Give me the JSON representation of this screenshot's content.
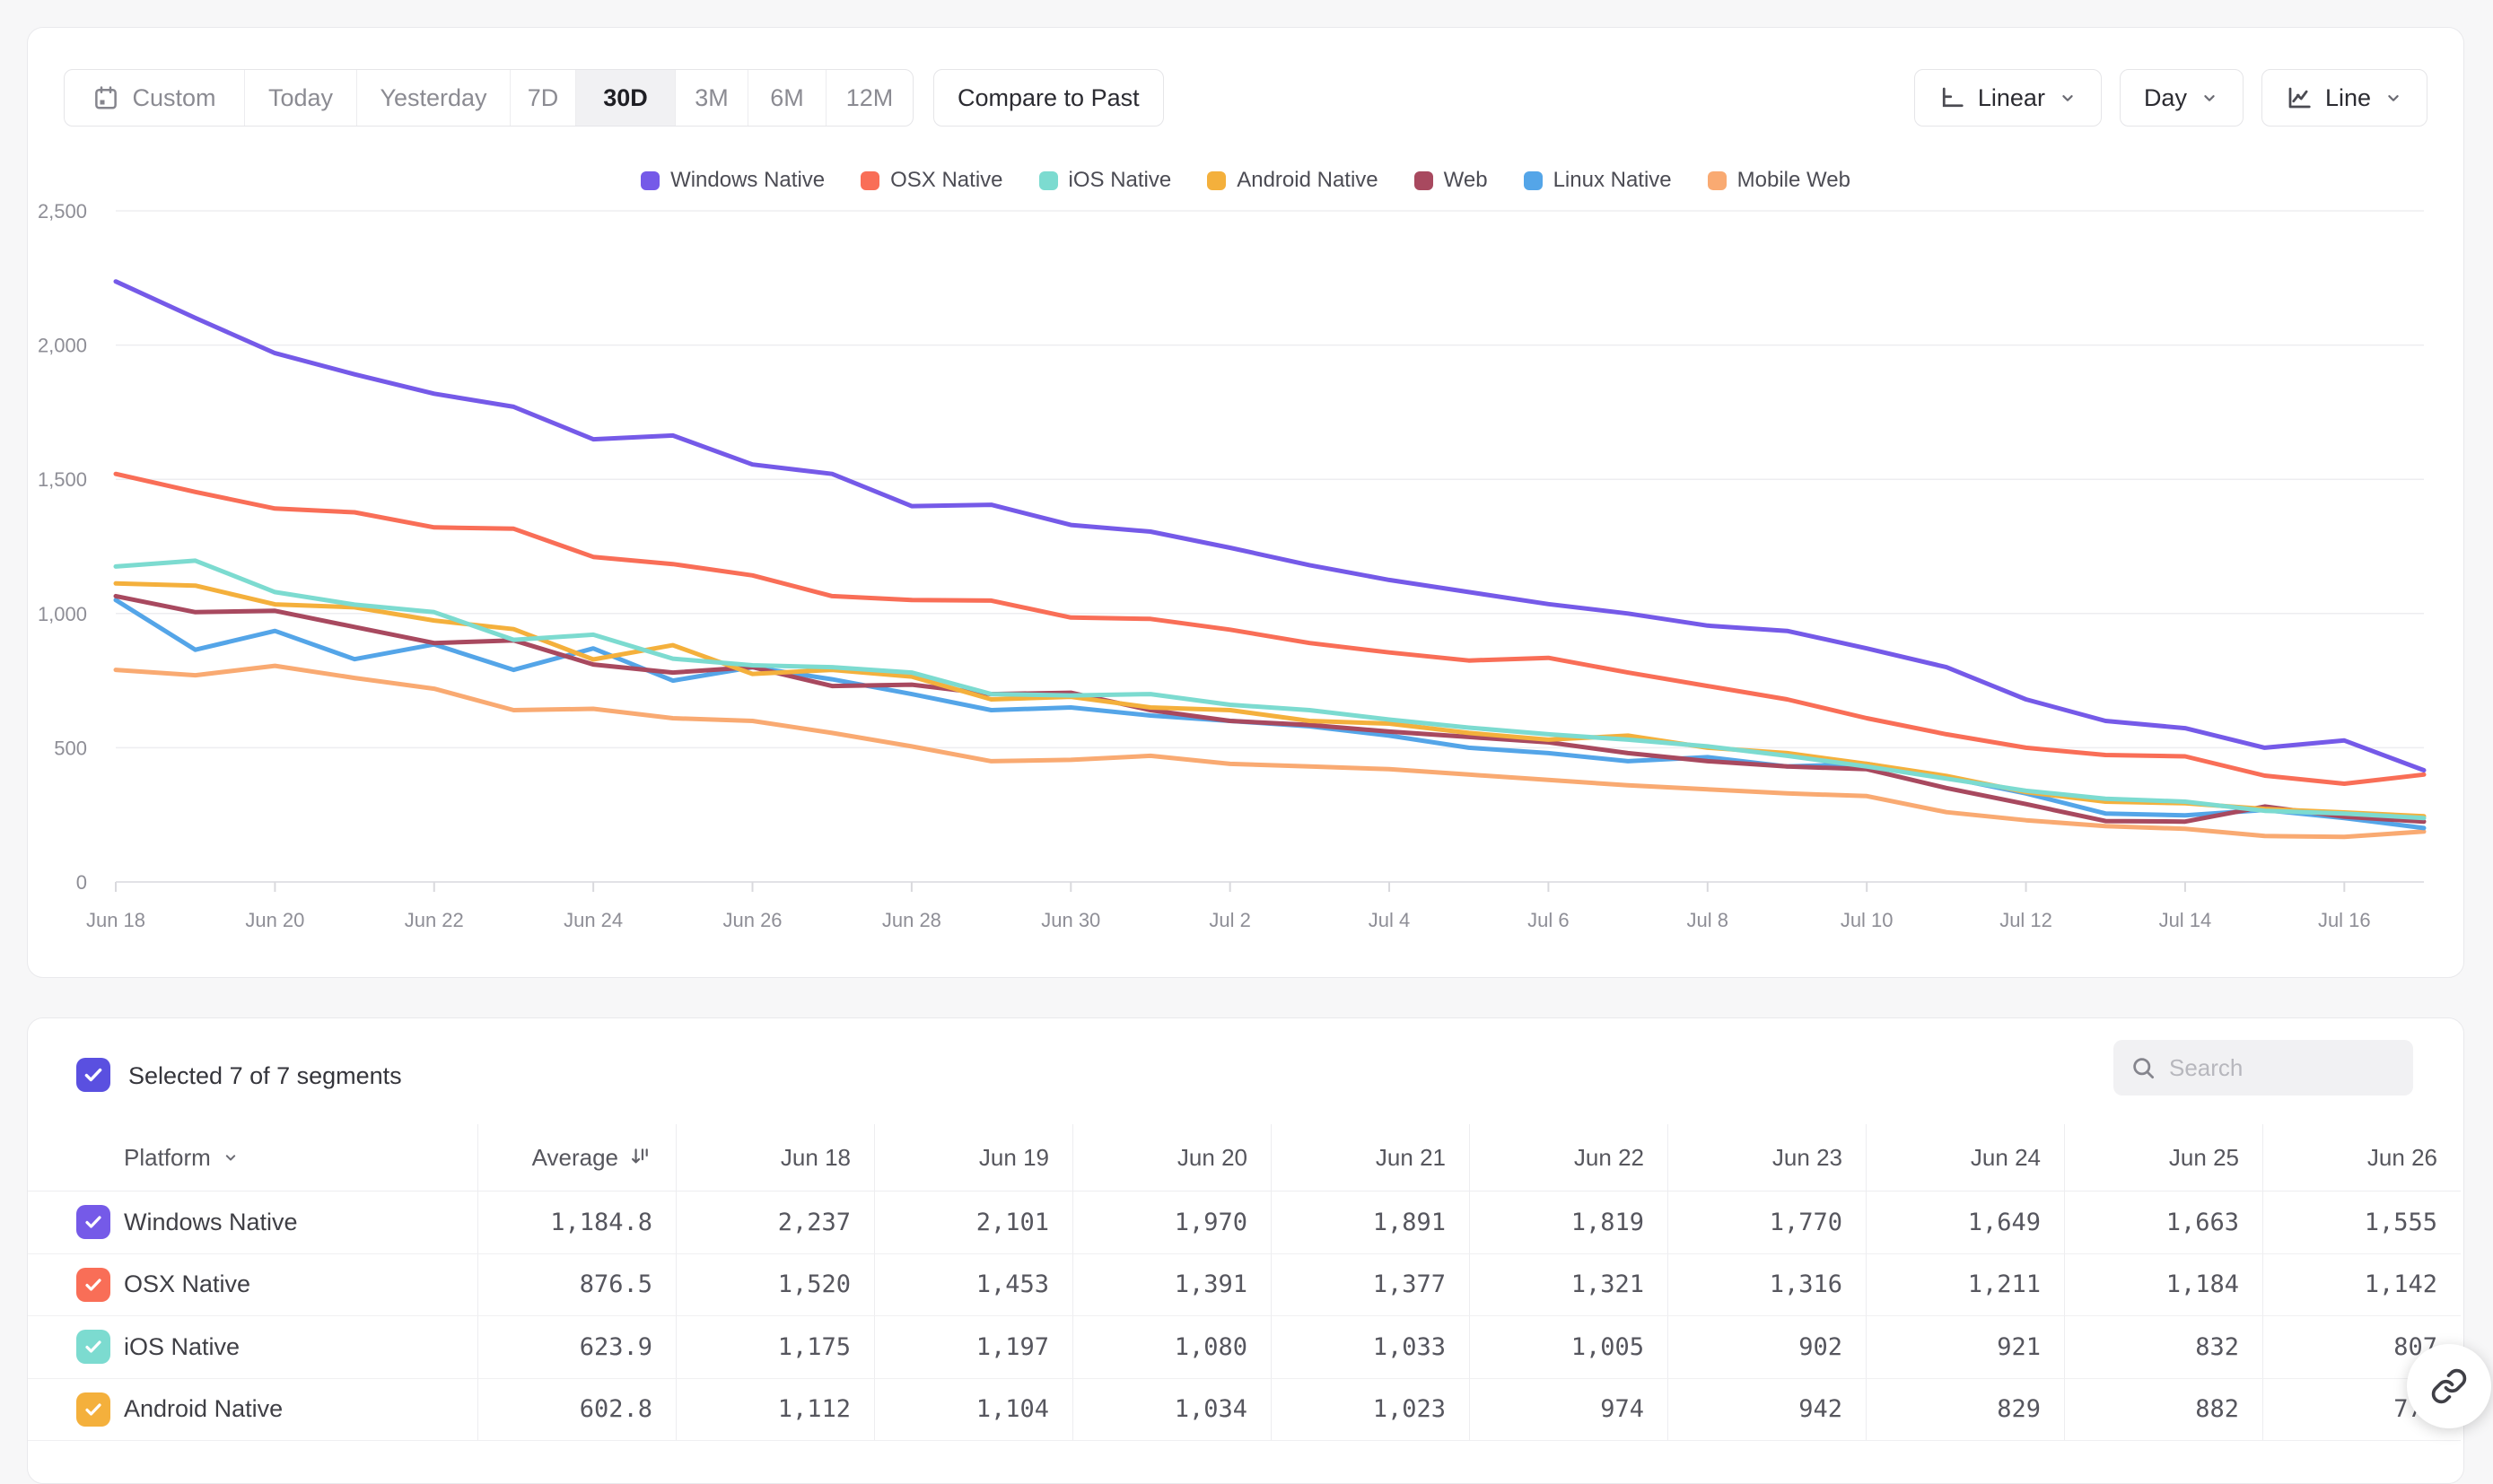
{
  "toolbar": {
    "date_ranges": [
      {
        "label": "Custom",
        "icon": "calendar",
        "active": false
      },
      {
        "label": "Today",
        "active": false
      },
      {
        "label": "Yesterday",
        "active": false
      },
      {
        "label": "7D",
        "active": false
      },
      {
        "label": "30D",
        "active": true
      },
      {
        "label": "3M",
        "active": false
      },
      {
        "label": "6M",
        "active": false
      },
      {
        "label": "12M",
        "active": false
      }
    ],
    "compare_label": "Compare to Past",
    "scale_label": "Linear",
    "granularity_label": "Day",
    "chart_type_label": "Line"
  },
  "chart_data": {
    "type": "line",
    "title": "",
    "xlabel": "",
    "ylabel": "",
    "grid": true,
    "legend_position": "top",
    "ylim": [
      0,
      2500
    ],
    "yticks": [
      0,
      500,
      1000,
      1500,
      2000,
      2500
    ],
    "ytick_labels": [
      "0",
      "500",
      "1,000",
      "1,500",
      "2,000",
      "2,500"
    ],
    "x": [
      "Jun 18",
      "Jun 19",
      "Jun 20",
      "Jun 21",
      "Jun 22",
      "Jun 23",
      "Jun 24",
      "Jun 25",
      "Jun 26",
      "Jun 27",
      "Jun 28",
      "Jun 29",
      "Jun 30",
      "Jul 1",
      "Jul 2",
      "Jul 3",
      "Jul 4",
      "Jul 5",
      "Jul 6",
      "Jul 7",
      "Jul 8",
      "Jul 9",
      "Jul 10",
      "Jul 11",
      "Jul 12",
      "Jul 13",
      "Jul 14",
      "Jul 15",
      "Jul 16",
      "Jul 17"
    ],
    "x_tick_labels": [
      "Jun 18",
      "Jun 20",
      "Jun 22",
      "Jun 24",
      "Jun 26",
      "Jun 28",
      "Jun 30",
      "Jul 2",
      "Jul 4",
      "Jul 6",
      "Jul 8",
      "Jul 10",
      "Jul 12",
      "Jul 14",
      "Jul 16"
    ],
    "series": [
      {
        "name": "Windows Native",
        "color": "#755ae8",
        "values": [
          2237,
          2101,
          1970,
          1891,
          1819,
          1770,
          1649,
          1663,
          1555,
          1520,
          1400,
          1405,
          1330,
          1305,
          1245,
          1180,
          1125,
          1080,
          1035,
          1000,
          955,
          935,
          870,
          800,
          680,
          600,
          573,
          500,
          527,
          416
        ]
      },
      {
        "name": "OSX Native",
        "color": "#f96e57",
        "values": [
          1520,
          1453,
          1391,
          1377,
          1321,
          1316,
          1211,
          1184,
          1142,
          1065,
          1050,
          1048,
          985,
          980,
          940,
          890,
          855,
          825,
          835,
          780,
          730,
          680,
          610,
          550,
          500,
          473,
          468,
          396,
          366,
          400
        ]
      },
      {
        "name": "iOS Native",
        "color": "#7cdbd0",
        "values": [
          1175,
          1197,
          1080,
          1033,
          1005,
          902,
          921,
          832,
          807,
          800,
          780,
          700,
          695,
          700,
          660,
          640,
          605,
          575,
          550,
          530,
          505,
          470,
          430,
          385,
          340,
          310,
          299,
          265,
          255,
          238
        ]
      },
      {
        "name": "Android Native",
        "color": "#f4b03c",
        "values": [
          1112,
          1104,
          1034,
          1023,
          974,
          942,
          829,
          882,
          775,
          790,
          765,
          680,
          690,
          650,
          640,
          600,
          590,
          555,
          530,
          545,
          500,
          480,
          440,
          395,
          335,
          299,
          293,
          272,
          259,
          245
        ]
      },
      {
        "name": "Web",
        "color": "#a8495f",
        "values": [
          1065,
          1005,
          1010,
          950,
          890,
          900,
          810,
          780,
          800,
          730,
          735,
          700,
          705,
          640,
          600,
          585,
          560,
          540,
          520,
          480,
          450,
          430,
          420,
          350,
          290,
          227,
          225,
          281,
          243,
          225
        ]
      },
      {
        "name": "Linux Native",
        "color": "#54a5e8",
        "values": [
          1050,
          865,
          935,
          830,
          885,
          790,
          870,
          750,
          800,
          755,
          700,
          640,
          650,
          620,
          600,
          580,
          545,
          500,
          480,
          450,
          465,
          430,
          440,
          390,
          330,
          255,
          248,
          268,
          238,
          201
        ]
      },
      {
        "name": "Mobile Web",
        "color": "#f9aa72",
        "values": [
          790,
          770,
          805,
          760,
          720,
          640,
          645,
          610,
          600,
          555,
          505,
          450,
          455,
          470,
          440,
          430,
          420,
          400,
          380,
          360,
          345,
          330,
          320,
          260,
          230,
          208,
          198,
          171,
          168,
          188
        ]
      }
    ]
  },
  "segments_panel": {
    "selected_label": "Selected 7 of 7 segments",
    "selected_checkbox_color": "#5a50e0",
    "search_placeholder": "Search",
    "table": {
      "platform_header": "Platform",
      "average_header": "Average",
      "date_columns": [
        "Jun 18",
        "Jun 19",
        "Jun 20",
        "Jun 21",
        "Jun 22",
        "Jun 23",
        "Jun 24",
        "Jun 25",
        "Jun 26"
      ],
      "rows": [
        {
          "label": "Windows Native",
          "color": "#755ae8",
          "average": "1,184.8",
          "values": [
            "2,237",
            "2,101",
            "1,970",
            "1,891",
            "1,819",
            "1,770",
            "1,649",
            "1,663",
            "1,555"
          ]
        },
        {
          "label": "OSX Native",
          "color": "#f96e57",
          "average": "876.5",
          "values": [
            "1,520",
            "1,453",
            "1,391",
            "1,377",
            "1,321",
            "1,316",
            "1,211",
            "1,184",
            "1,142"
          ]
        },
        {
          "label": "iOS Native",
          "color": "#7cdbd0",
          "average": "623.9",
          "values": [
            "1,175",
            "1,197",
            "1,080",
            "1,033",
            "1,005",
            "902",
            "921",
            "832",
            "807"
          ]
        },
        {
          "label": "Android Native",
          "color": "#f4b03c",
          "average": "602.8",
          "values": [
            "1,112",
            "1,104",
            "1,034",
            "1,023",
            "974",
            "942",
            "829",
            "882",
            "775"
          ]
        }
      ]
    }
  },
  "fab": {
    "icon": "link"
  }
}
